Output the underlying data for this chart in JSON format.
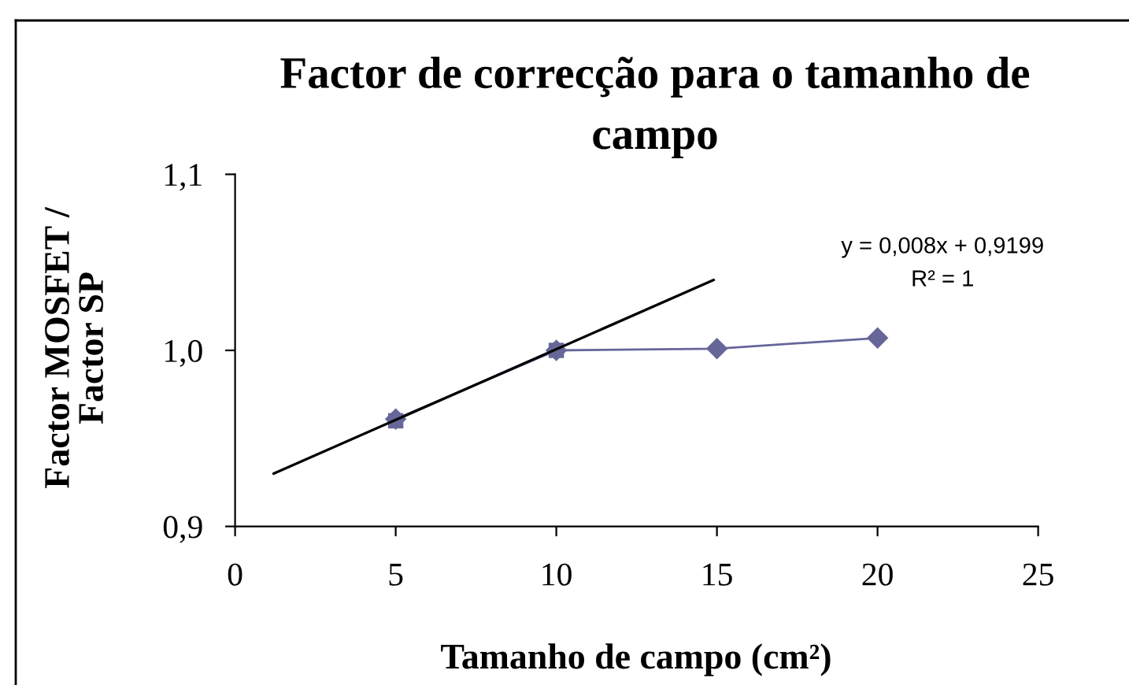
{
  "chart_data": {
    "type": "line",
    "title": "Factor de correcção para o tamanho de\ncampo",
    "xlabel": "Tamanho de campo (cm²)",
    "ylabel": "Factor MOSFET /\nFactor SP",
    "x": [
      5,
      10,
      15,
      20
    ],
    "series": [
      {
        "color": "#666699",
        "marker": "diamond",
        "values": [
          0.961,
          1.0,
          1.001,
          1.007
        ]
      },
      {
        "type": "scatter",
        "color": "#666699",
        "marker": "square",
        "x": [
          5,
          10
        ],
        "values": [
          0.96,
          1.0
        ]
      },
      {
        "type": "line",
        "color": "#000000",
        "marker": "none",
        "x": [
          1.2,
          14.9
        ],
        "values": [
          0.93,
          1.04
        ]
      }
    ],
    "xlim": [
      0,
      25
    ],
    "xticks": [
      0,
      5,
      10,
      15,
      20,
      25
    ],
    "ylim": [
      0.9,
      1.1
    ],
    "yticks": [
      {
        "value": 0.9,
        "label": "0,9"
      },
      {
        "value": 1.0,
        "label": "1,0"
      },
      {
        "value": 1.1,
        "label": "1,1"
      }
    ],
    "annotations": [
      "y = 0,008x + 0,9199",
      "R² = 1"
    ]
  }
}
